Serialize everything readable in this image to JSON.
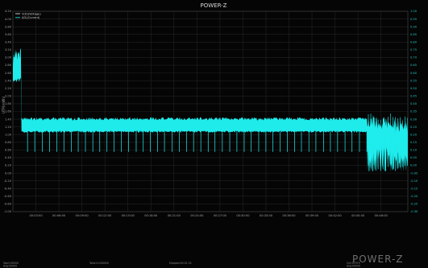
{
  "chart_data": {
    "type": "line",
    "title": "POWER-Z",
    "ylabel": "UTP(mWh)",
    "grid": true,
    "legend_placement": "top-left",
    "legend": [
      "V(D)(Voltage)",
      "I(D)(Current)"
    ],
    "colors": {
      "voltage": "#f3f3f3",
      "current": "#20f0f0",
      "grid": "#232323",
      "background": "#050505"
    },
    "left_ticks": [
      "4.20",
      "4.00",
      "3.80",
      "3.60",
      "3.40",
      "3.20",
      "3.00",
      "2.80",
      "2.60",
      "2.40",
      "2.20",
      "2.00",
      "1.80",
      "1.60",
      "1.40",
      "1.20",
      "1.00",
      "0.80",
      "0.60",
      "0.40",
      "0.20",
      "0.00",
      "-0.20",
      "-0.40",
      "-0.60",
      "-0.80",
      "-1.00"
    ],
    "right_ticks": [
      "1.00",
      "0.95",
      "0.90",
      "0.85",
      "0.80",
      "0.75",
      "0.70",
      "0.65",
      "0.60",
      "0.55",
      "0.50",
      "0.45",
      "0.40",
      "0.35",
      "0.30",
      "0.25",
      "0.20",
      "0.15",
      "0.10",
      "0.05",
      "0.00",
      "-0.05",
      "-0.10",
      "-0.15",
      "-0.20",
      "-0.25",
      "-0.30"
    ],
    "x_ticks": [
      "00:03:00",
      "00:06:00",
      "00:09:00",
      "00:12:00",
      "00:15:00",
      "00:18:00",
      "00:21:00",
      "00:24:00",
      "00:27:00",
      "00:30:00",
      "00:33:00",
      "00:36:00",
      "00:39:00",
      "00:42:00",
      "00:45:00",
      "00:48:00"
    ],
    "xlim_minutes": [
      0,
      51.5
    ],
    "ylim_left": [
      -1.0,
      4.2
    ],
    "current_profile": {
      "initial": {
        "x_end_minutes": 1.1,
        "low": 2.35,
        "high": 3.25
      },
      "steady": {
        "x_start_minutes": 1.1,
        "x_end_minutes": 46.2,
        "low": 1.05,
        "high": 1.45,
        "dip": 0.55
      },
      "tail": {
        "x_start_minutes": 46.2,
        "x_end_minutes": 51.5,
        "low": 0.05,
        "high": 1.55
      }
    },
    "footer": {
      "left": [
        "Start:00000",
        "Avg:00000"
      ],
      "center_left": "Total:0.000000",
      "center": "Elapsed:00:51:31",
      "right": [
        "Cnt:07979",
        "Avg:00000"
      ]
    }
  },
  "branding": {
    "logo": "POWER-Z"
  }
}
